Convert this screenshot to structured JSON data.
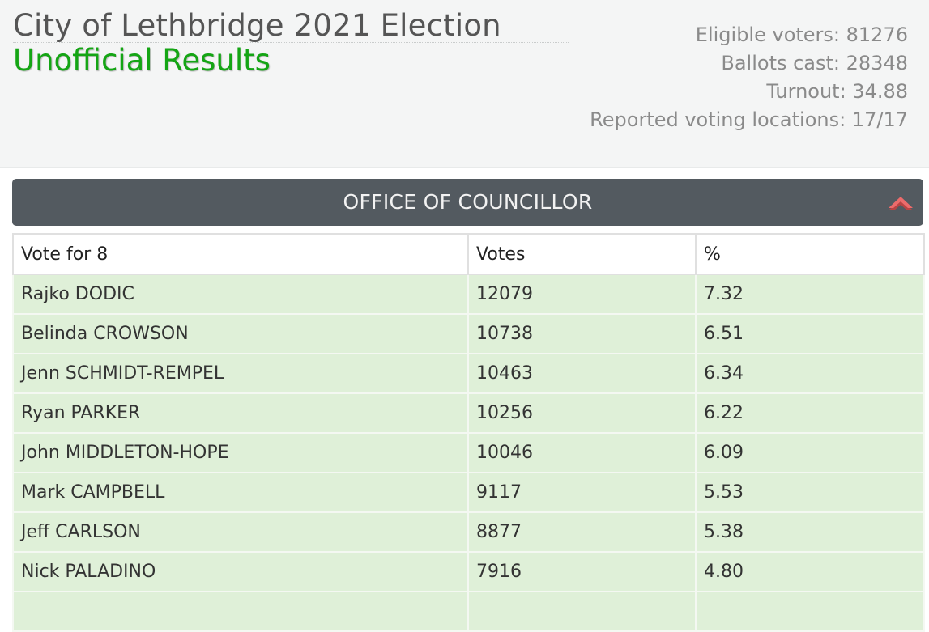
{
  "header": {
    "title": "City of Lethbridge 2021 Election",
    "subtitle": "Unofficial Results",
    "stats": [
      "Eligible voters: 81276",
      "Ballots cast: 28348",
      "Turnout: 34.88",
      "Reported voting locations: 17/17"
    ]
  },
  "panel": {
    "title": "OFFICE OF COUNCILLOR",
    "collapse_icon": "chevron-up-icon",
    "accent_color": "#e85a5a"
  },
  "table": {
    "columns": [
      "Vote for 8",
      "Votes",
      "%"
    ],
    "rows": [
      [
        "Rajko DODIC",
        "12079",
        "7.32"
      ],
      [
        "Belinda CROWSON",
        "10738",
        "6.51"
      ],
      [
        "Jenn SCHMIDT-REMPEL",
        "10463",
        "6.34"
      ],
      [
        "Ryan PARKER",
        "10256",
        "6.22"
      ],
      [
        "John MIDDLETON-HOPE",
        "10046",
        "6.09"
      ],
      [
        "Mark CAMPBELL",
        "9117",
        "5.53"
      ],
      [
        "Jeff CARLSON",
        "8877",
        "5.38"
      ],
      [
        "Nick PALADINO",
        "7916",
        "4.80"
      ]
    ],
    "winner_row_color": "#dff0d8"
  }
}
